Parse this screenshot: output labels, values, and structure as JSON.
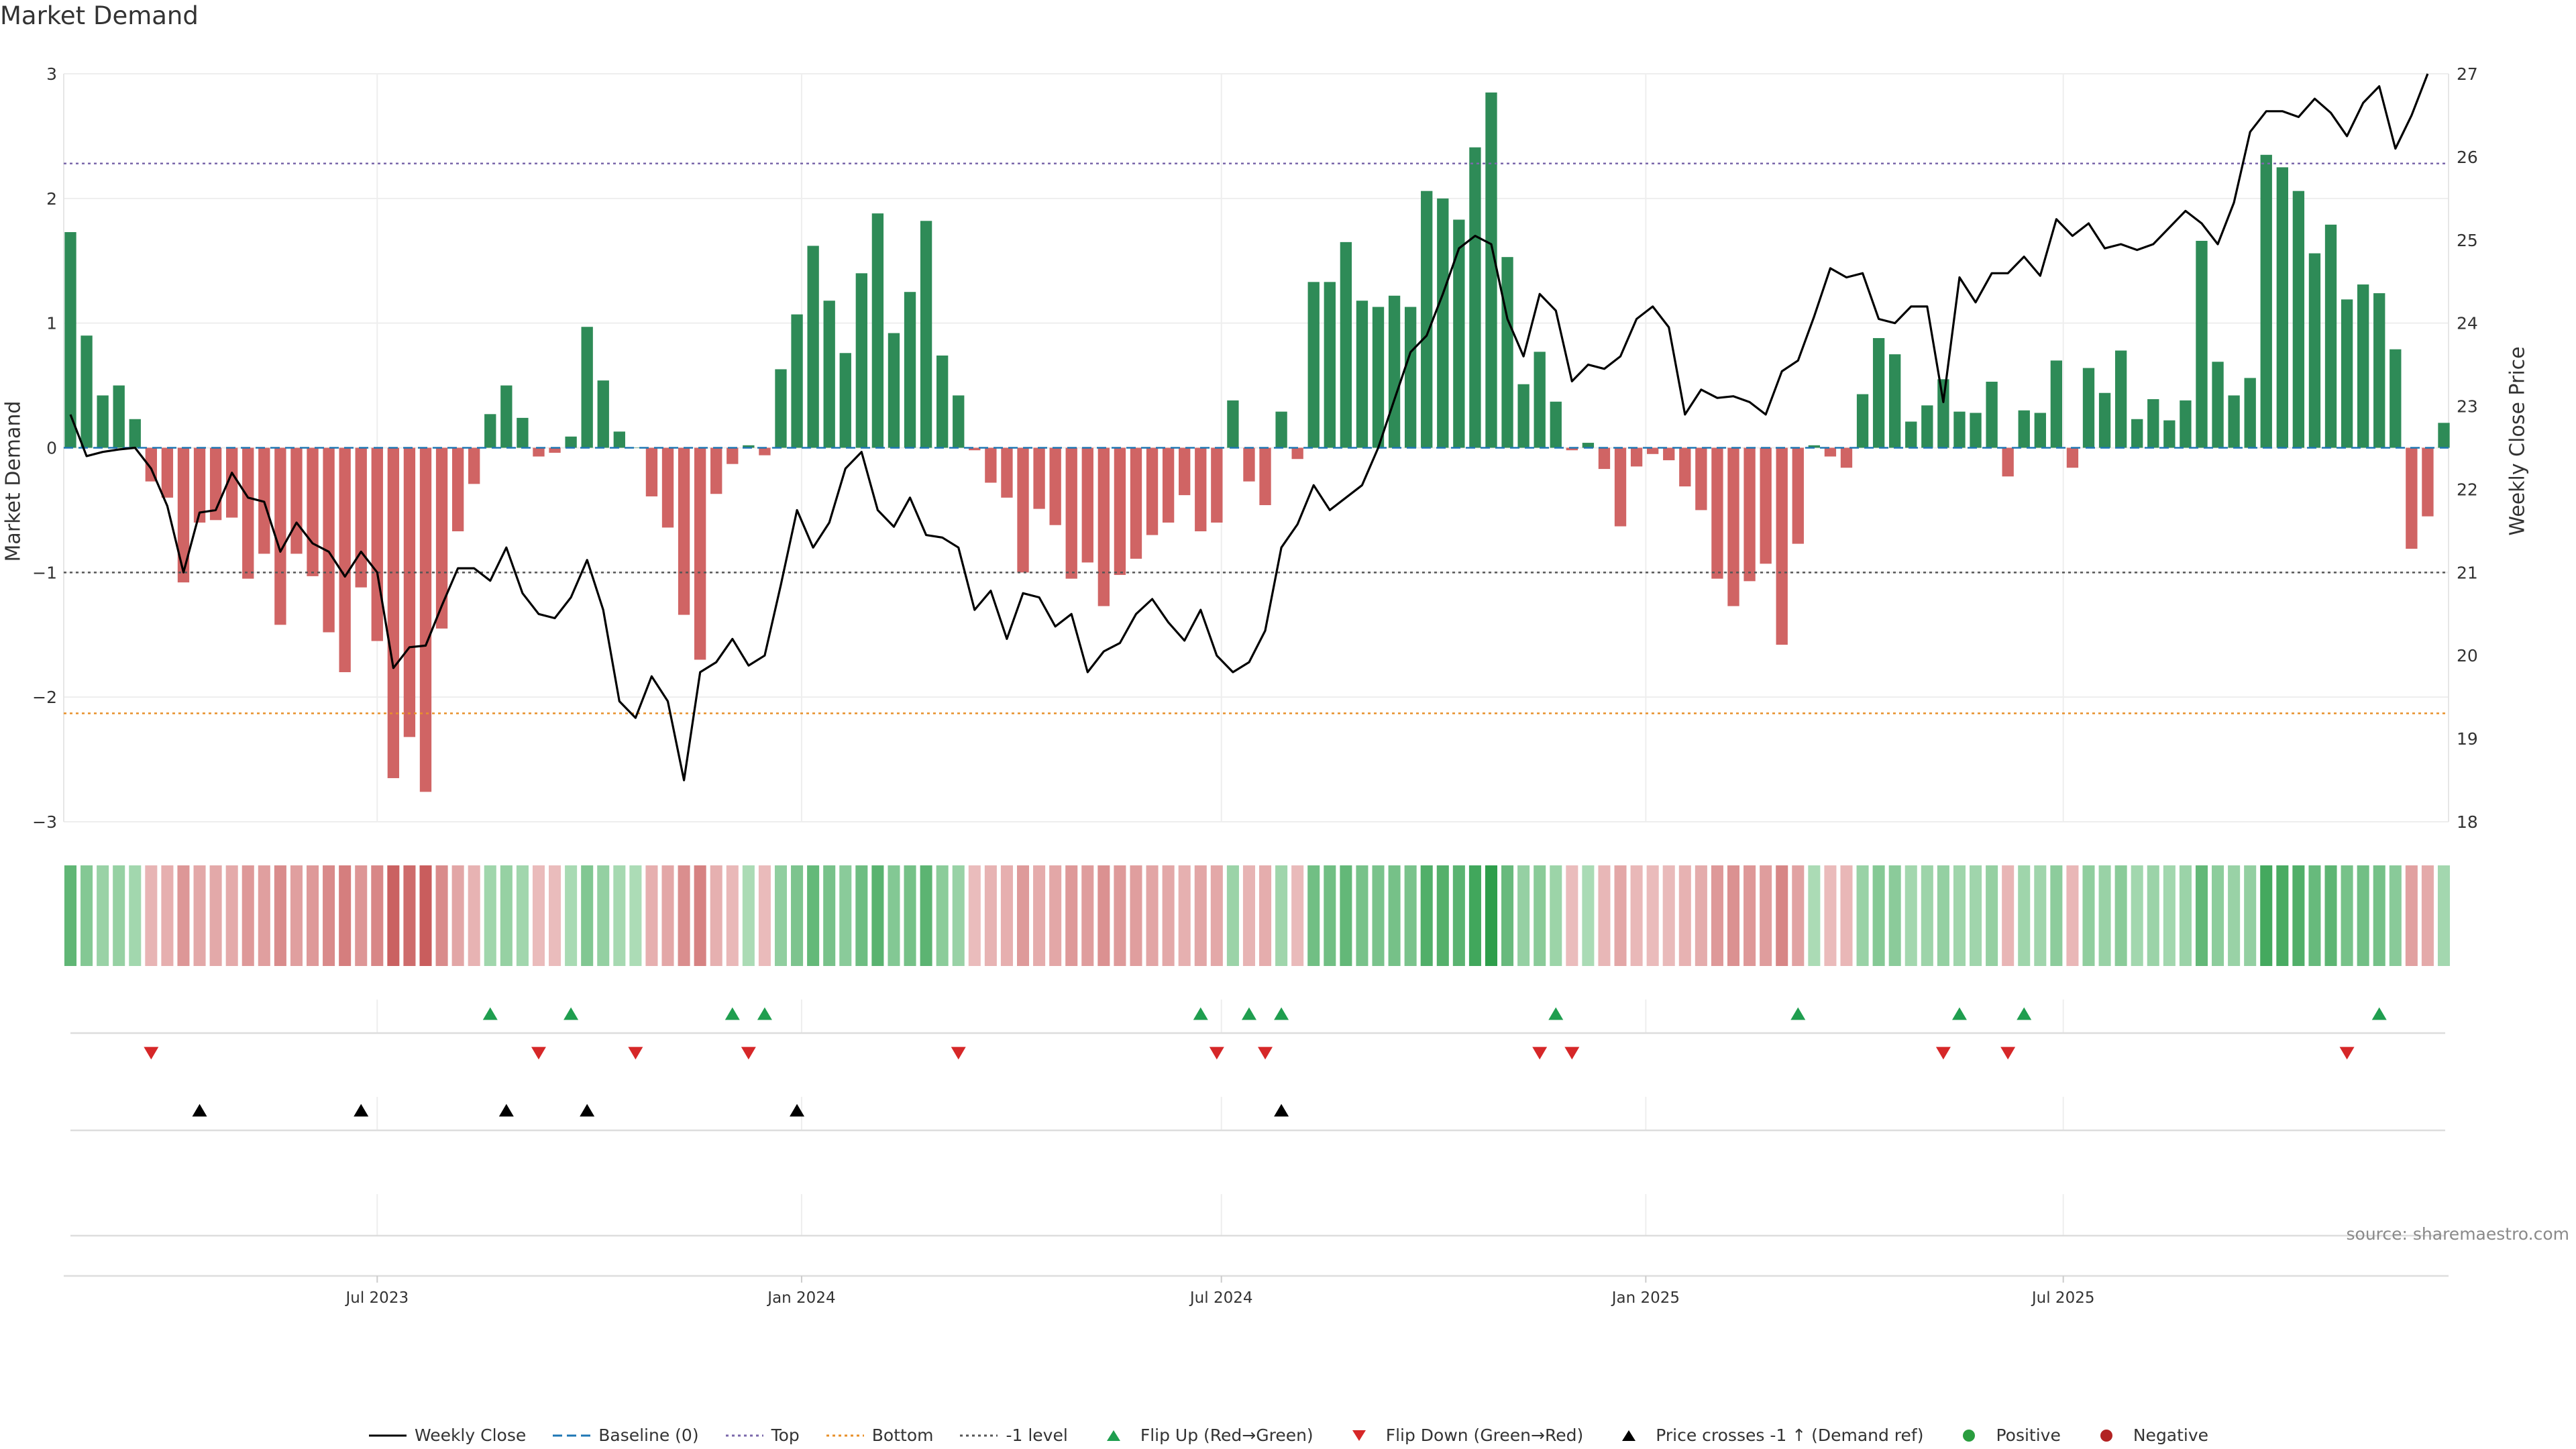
{
  "chart_data": {
    "type": "bar+line",
    "title": "Market Demand",
    "ylabel_left": "Market Demand",
    "ylabel_right": "Weekly Close Price",
    "ylim_left": [
      -3,
      3
    ],
    "ylim_right": [
      18,
      27
    ],
    "yticks_left": [
      "3",
      "2",
      "1",
      "0",
      "−1",
      "−2",
      "−3"
    ],
    "yticks_right": [
      "27",
      "26",
      "25",
      "24",
      "23",
      "22",
      "21",
      "20",
      "19",
      "18"
    ],
    "x_start": "2023-02-18",
    "x_step_days": 7,
    "x_ticks": [
      {
        "label": "Jul 2023",
        "date": "2023-07-01"
      },
      {
        "label": "Jan 2024",
        "date": "2024-01-01"
      },
      {
        "label": "Jul 2024",
        "date": "2024-07-01"
      },
      {
        "label": "Jan 2025",
        "date": "2025-01-01"
      },
      {
        "label": "Jul 2025",
        "date": "2025-07-01"
      }
    ],
    "reference_lines": {
      "top": 2.28,
      "bottom": -2.13,
      "minus_one": -1.0
    },
    "demand": [
      1.73,
      0.9,
      0.42,
      0.5,
      0.23,
      -0.27,
      -0.4,
      -1.08,
      -0.6,
      -0.58,
      -0.56,
      -1.05,
      -0.85,
      -1.42,
      -0.85,
      -1.03,
      -1.48,
      -1.8,
      -1.12,
      -1.55,
      -2.65,
      -2.32,
      -2.76,
      -1.45,
      -0.67,
      -0.29,
      0.27,
      0.5,
      0.24,
      -0.07,
      -0.04,
      0.09,
      0.97,
      0.54,
      0.13,
      0.0,
      -0.39,
      -0.64,
      -1.34,
      -1.7,
      -0.37,
      -0.13,
      0.02,
      -0.06,
      0.63,
      1.07,
      1.62,
      1.18,
      0.76,
      1.4,
      1.88,
      0.92,
      1.25,
      1.82,
      0.74,
      0.42,
      -0.02,
      -0.28,
      -0.4,
      -1.0,
      -0.49,
      -0.62,
      -1.05,
      -0.92,
      -1.27,
      -1.02,
      -0.89,
      -0.7,
      -0.6,
      -0.38,
      -0.67,
      -0.6,
      0.38,
      -0.27,
      -0.46,
      0.29,
      -0.09,
      1.33,
      1.33,
      1.65,
      1.18,
      1.13,
      1.22,
      1.13,
      2.06,
      2.0,
      1.83,
      2.41,
      2.85,
      1.53,
      0.51,
      0.77,
      0.37,
      -0.02,
      0.04,
      -0.17,
      -0.63,
      -0.15,
      -0.05,
      -0.1,
      -0.31,
      -0.5,
      -1.05,
      -1.27,
      -1.07,
      -0.93,
      -1.58,
      -0.77,
      0.02,
      -0.07,
      -0.16,
      0.43,
      0.88,
      0.75,
      0.21,
      0.34,
      0.55,
      0.29,
      0.28,
      0.53,
      -0.23,
      0.3,
      0.28,
      0.7,
      -0.16,
      0.64,
      0.44,
      0.78,
      0.23,
      0.39,
      0.22,
      0.38,
      1.66,
      0.69,
      0.42,
      0.56,
      2.35,
      2.25,
      2.06,
      1.56,
      1.79,
      1.19,
      1.31,
      1.24,
      0.79,
      -0.81,
      -0.55,
      0.2
    ],
    "price": [
      22.9,
      22.4,
      22.45,
      22.48,
      22.5,
      22.25,
      21.8,
      21.0,
      21.72,
      21.75,
      22.2,
      21.9,
      21.85,
      21.25,
      21.6,
      21.35,
      21.25,
      20.95,
      21.25,
      21.0,
      19.85,
      20.1,
      20.12,
      20.6,
      21.05,
      21.05,
      20.9,
      21.3,
      20.75,
      20.5,
      20.45,
      20.7,
      21.15,
      20.55,
      19.45,
      19.25,
      19.75,
      19.45,
      18.5,
      19.8,
      19.92,
      20.2,
      19.88,
      20.0,
      20.85,
      21.75,
      21.3,
      21.6,
      22.25,
      22.45,
      21.75,
      21.55,
      21.9,
      21.45,
      21.42,
      21.3,
      20.55,
      20.78,
      20.2,
      20.75,
      20.7,
      20.35,
      20.5,
      19.8,
      20.05,
      20.15,
      20.5,
      20.68,
      20.4,
      20.18,
      20.55,
      20.0,
      19.8,
      19.92,
      20.3,
      21.3,
      21.58,
      22.05,
      21.75,
      21.9,
      22.05,
      22.5,
      23.08,
      23.65,
      23.85,
      24.35,
      24.9,
      25.05,
      24.95,
      24.05,
      23.6,
      24.35,
      24.15,
      23.3,
      23.5,
      23.45,
      23.6,
      24.05,
      24.2,
      23.95,
      22.9,
      23.2,
      23.1,
      23.12,
      23.05,
      22.9,
      23.42,
      23.55,
      24.08,
      24.66,
      24.55,
      24.6,
      24.05,
      24.0,
      24.2,
      24.2,
      23.05,
      24.55,
      24.25,
      24.6,
      24.6,
      24.8,
      24.57,
      25.25,
      25.05,
      25.2,
      24.9,
      24.95,
      24.88,
      24.95,
      25.15,
      25.35,
      25.2,
      24.95,
      25.45,
      26.3,
      26.55,
      26.55,
      26.48,
      26.7,
      26.53,
      26.25,
      26.65,
      26.85,
      26.1,
      26.5,
      27.0
    ],
    "flip_up_weeks": [
      26,
      31,
      41,
      43,
      70,
      73,
      75,
      92,
      107,
      117,
      121,
      143
    ],
    "flip_down_weeks": [
      5,
      29,
      35,
      42,
      55,
      71,
      74,
      91,
      93,
      116,
      120,
      141
    ],
    "cross_up_weeks": [
      8,
      18,
      27,
      32,
      45,
      75
    ],
    "legend": [
      {
        "label": "Weekly Close",
        "icon": "solid-line",
        "color": "#000000"
      },
      {
        "label": "Baseline (0)",
        "icon": "dashed-line",
        "color": "#1f77b4"
      },
      {
        "label": "Top",
        "icon": "dotted-line",
        "color": "#7b68ab"
      },
      {
        "label": "Bottom",
        "icon": "dotted-line",
        "color": "#e8902a"
      },
      {
        "label": "-1 level",
        "icon": "dotted-line",
        "color": "#555555"
      },
      {
        "label": "Flip Up (Red→Green)",
        "icon": "triangle-up",
        "color": "#1f9e4f"
      },
      {
        "label": "Flip Down (Green→Red)",
        "icon": "triangle-down",
        "color": "#d62728"
      },
      {
        "label": "Price crosses -1 ↑ (Demand ref)",
        "icon": "triangle-up",
        "color": "#000000"
      },
      {
        "label": "Positive",
        "icon": "dot",
        "color": "#2a9d3f"
      },
      {
        "label": "Negative",
        "icon": "dot",
        "color": "#b22222"
      }
    ],
    "source": "source: sharemaestro.com"
  },
  "colors": {
    "positive_bar": "#2e8b57",
    "negative_bar": "#cd5c5c",
    "price_line": "#000000"
  }
}
